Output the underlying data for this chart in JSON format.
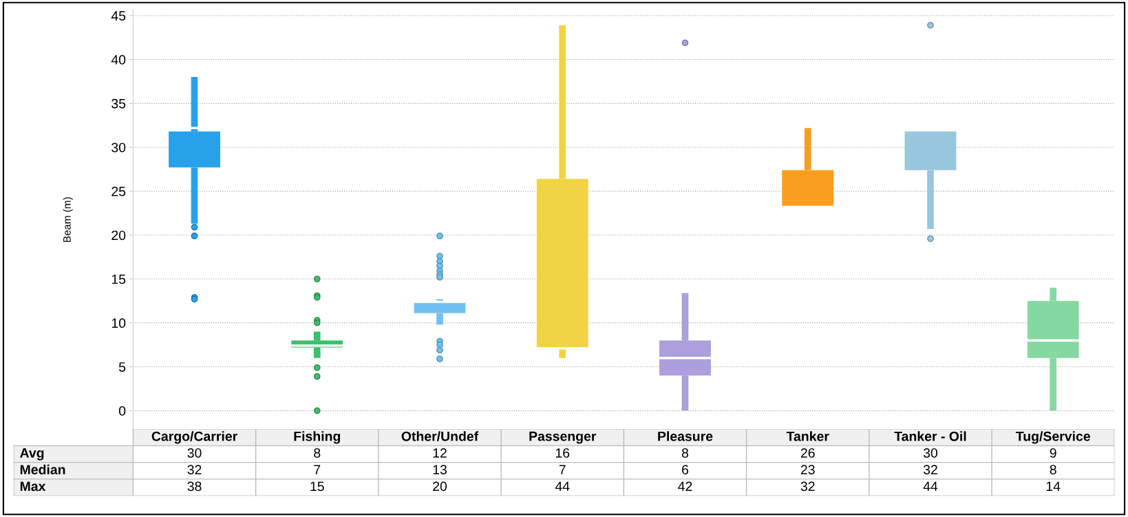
{
  "chart_data": {
    "type": "box",
    "ylabel": "Beam (m)",
    "categories": [
      "Cargo/Carrier",
      "Fishing",
      "Other/Undef",
      "Passenger",
      "Pleasure",
      "Tanker",
      "Tanker - Oil",
      "Tug/Service"
    ],
    "colors": [
      "#27a1ea",
      "#3dbf6b",
      "#72c0ef",
      "#f1d443",
      "#ac9fdd",
      "#f99d1c",
      "#98c6dd",
      "#85d8a0"
    ],
    "boxes": [
      {
        "low": 21.3,
        "q1": 27.7,
        "median": 32.2,
        "q3": 31.8,
        "high": 38,
        "outliers": [
          20.9,
          19.9,
          12.9,
          12.7
        ]
      },
      {
        "low": 6.0,
        "q1": 7.2,
        "median": 7.4,
        "q3": 8.0,
        "high": 9.0,
        "outliers": [
          15,
          13.1,
          12.9,
          10.3,
          10.0,
          4.9,
          3.9,
          0
        ]
      },
      {
        "low": 9.8,
        "q1": 11.1,
        "median": 12.4,
        "q3": 12.4,
        "high": 12.7,
        "outliers": [
          19.9,
          17.6,
          17.0,
          16.5,
          15.9,
          15.5,
          15.2,
          7.9,
          7.5,
          6.9,
          5.9
        ]
      },
      {
        "low": 6.0,
        "q1": 7.1,
        "median": 7.1,
        "q3": 26.4,
        "high": 43.9
      },
      {
        "low": 0,
        "q1": 4.0,
        "median": 6.0,
        "q3": 8.0,
        "high": 13.4,
        "outliers": [
          41.9
        ]
      },
      {
        "low": 23.2,
        "q1": 23.2,
        "median": 23.2,
        "q3": 27.4,
        "high": 32.2
      },
      {
        "low": 20.7,
        "q1": 27.4,
        "median": 32.2,
        "q3": 31.8,
        "high": 31.8,
        "outliers": [
          43.9,
          19.6
        ]
      },
      {
        "low": 0,
        "q1": 6.0,
        "median": 8.0,
        "q3": 12.5,
        "high": 14.0
      }
    ],
    "ylim": [
      -2.1,
      45.6
    ],
    "yticks": [
      0,
      5,
      10,
      15,
      20,
      25,
      30,
      35,
      40,
      45
    ],
    "grid": "y",
    "annotations": [
      "Avg",
      "30",
      "8",
      "12",
      "16",
      "8",
      "26",
      "30",
      "9",
      "Median",
      "32",
      "7",
      "13",
      "7",
      "6",
      "23",
      "32",
      "8",
      "Max",
      "38",
      "15",
      "20",
      "44",
      "42",
      "32",
      "44",
      "14"
    ]
  }
}
